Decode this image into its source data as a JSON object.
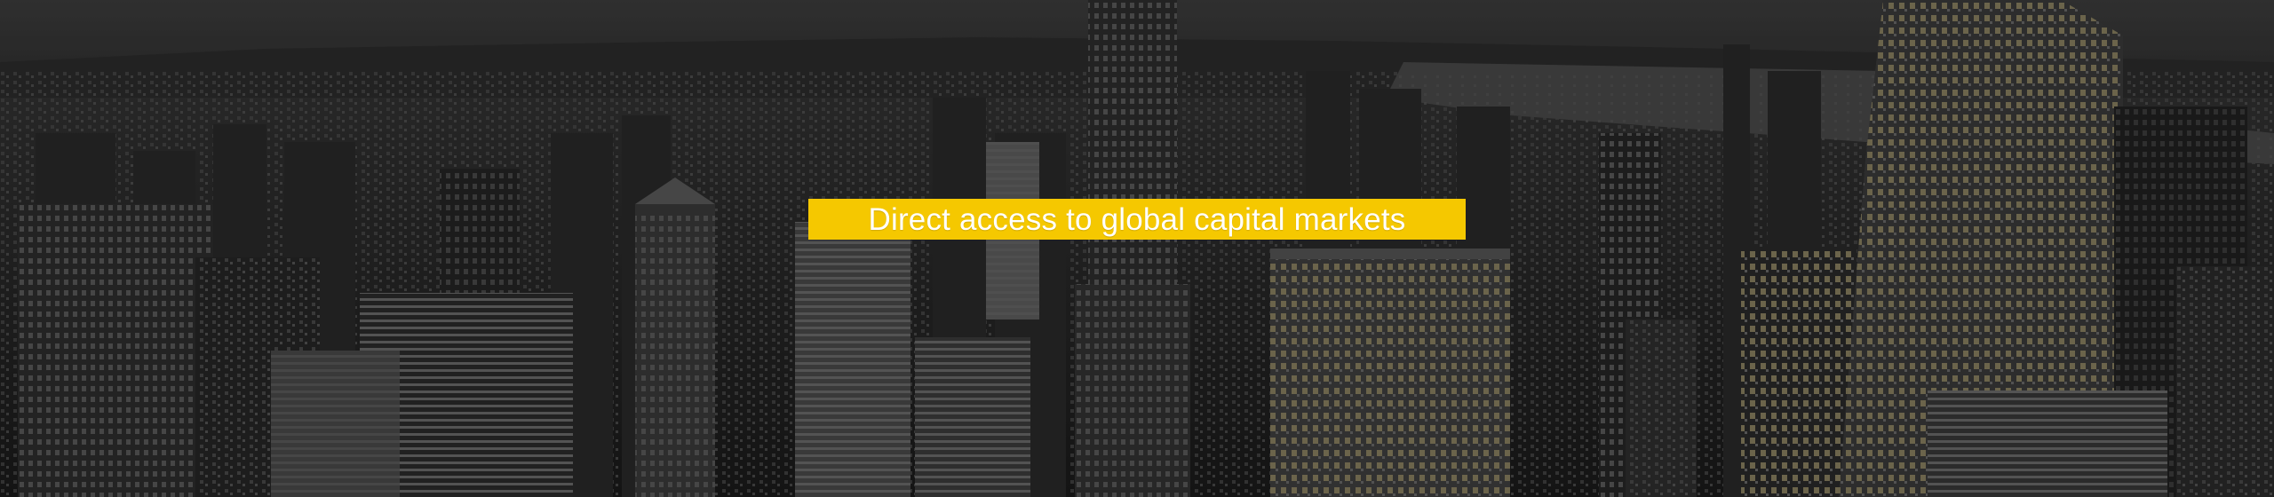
{
  "hero": {
    "headline": "Direct access to global capital markets",
    "background_image": "new-york-city-skyline-photo",
    "colors": {
      "accent": "#f5c800",
      "headline_text": "#ffffff",
      "overlay": "#1e1e1e"
    }
  }
}
